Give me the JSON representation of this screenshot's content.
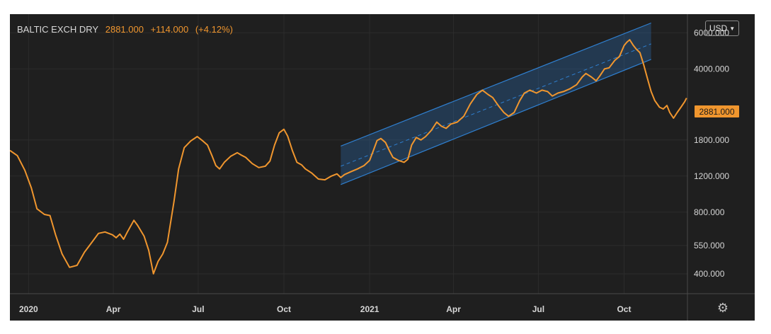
{
  "header": {
    "symbol": "BALTIC EXCH DRY",
    "last": "2881.000",
    "change": "+114.000",
    "change_pct": "(+4.12%)"
  },
  "currency": {
    "label": "USD",
    "chevron_icon": "chevron-down-icon"
  },
  "settings": {
    "icon": "gear-icon"
  },
  "last_price_label": "2881.000",
  "colors": {
    "background": "#1f1f1f",
    "line": "#f0962e",
    "channel": "#2f7fcf",
    "grid": "#2c2c2c",
    "text": "#d6d6d6"
  },
  "chart_data": {
    "type": "line",
    "y_scale": "log",
    "ylim": [
      320,
      7400
    ],
    "xlim": [
      "2019-12-12",
      "2021-12-08"
    ],
    "grid": true,
    "y_ticks": [
      {
        "value": 6000,
        "label": "6000.000"
      },
      {
        "value": 4000,
        "label": "4000.000"
      },
      {
        "value": 1800,
        "label": "1800.000"
      },
      {
        "value": 1200,
        "label": "1200.000"
      },
      {
        "value": 800,
        "label": "800.000"
      },
      {
        "value": 550,
        "label": "550.000"
      },
      {
        "value": 400,
        "label": "400.000"
      }
    ],
    "x_ticks": [
      {
        "date": "2020-01-01",
        "label": "2020"
      },
      {
        "date": "2020-04-01",
        "label": "Apr"
      },
      {
        "date": "2020-07-01",
        "label": "Jul"
      },
      {
        "date": "2020-10-01",
        "label": "Oct"
      },
      {
        "date": "2021-01-01",
        "label": "2021"
      },
      {
        "date": "2021-04-01",
        "label": "Apr"
      },
      {
        "date": "2021-07-01",
        "label": "Jul"
      },
      {
        "date": "2021-10-01",
        "label": "Oct"
      }
    ],
    "series": [
      {
        "points": [
          [
            "2019-12-12",
            1600
          ],
          [
            "2019-12-20",
            1510
          ],
          [
            "2019-12-28",
            1280
          ],
          [
            "2020-01-04",
            1050
          ],
          [
            "2020-01-10",
            830
          ],
          [
            "2020-01-18",
            780
          ],
          [
            "2020-01-24",
            770
          ],
          [
            "2020-01-30",
            620
          ],
          [
            "2020-02-06",
            500
          ],
          [
            "2020-02-14",
            430
          ],
          [
            "2020-02-22",
            440
          ],
          [
            "2020-03-01",
            510
          ],
          [
            "2020-03-09",
            570
          ],
          [
            "2020-03-16",
            630
          ],
          [
            "2020-03-23",
            640
          ],
          [
            "2020-03-31",
            620
          ],
          [
            "2020-04-04",
            600
          ],
          [
            "2020-04-08",
            625
          ],
          [
            "2020-04-12",
            590
          ],
          [
            "2020-04-16",
            640
          ],
          [
            "2020-04-23",
            730
          ],
          [
            "2020-04-27",
            690
          ],
          [
            "2020-05-04",
            610
          ],
          [
            "2020-05-09",
            520
          ],
          [
            "2020-05-14",
            400
          ],
          [
            "2020-05-19",
            460
          ],
          [
            "2020-05-24",
            500
          ],
          [
            "2020-05-29",
            570
          ],
          [
            "2020-06-05",
            900
          ],
          [
            "2020-06-10",
            1300
          ],
          [
            "2020-06-16",
            1650
          ],
          [
            "2020-06-23",
            1780
          ],
          [
            "2020-06-30",
            1870
          ],
          [
            "2020-07-06",
            1780
          ],
          [
            "2020-07-11",
            1700
          ],
          [
            "2020-07-16",
            1500
          ],
          [
            "2020-07-20",
            1350
          ],
          [
            "2020-07-24",
            1300
          ],
          [
            "2020-07-29",
            1400
          ],
          [
            "2020-08-05",
            1500
          ],
          [
            "2020-08-12",
            1560
          ],
          [
            "2020-08-16",
            1520
          ],
          [
            "2020-08-21",
            1480
          ],
          [
            "2020-08-28",
            1380
          ],
          [
            "2020-09-04",
            1320
          ],
          [
            "2020-09-11",
            1340
          ],
          [
            "2020-09-16",
            1420
          ],
          [
            "2020-09-21",
            1700
          ],
          [
            "2020-09-26",
            1950
          ],
          [
            "2020-10-01",
            2030
          ],
          [
            "2020-10-05",
            1880
          ],
          [
            "2020-10-10",
            1600
          ],
          [
            "2020-10-15",
            1400
          ],
          [
            "2020-10-20",
            1360
          ],
          [
            "2020-10-24",
            1300
          ],
          [
            "2020-10-31",
            1240
          ],
          [
            "2020-11-07",
            1160
          ],
          [
            "2020-11-14",
            1150
          ],
          [
            "2020-11-21",
            1200
          ],
          [
            "2020-11-27",
            1230
          ],
          [
            "2020-12-01",
            1180
          ],
          [
            "2020-12-05",
            1220
          ],
          [
            "2020-12-12",
            1260
          ],
          [
            "2020-12-19",
            1300
          ],
          [
            "2020-12-26",
            1350
          ],
          [
            "2021-01-01",
            1430
          ],
          [
            "2021-01-05",
            1600
          ],
          [
            "2021-01-09",
            1790
          ],
          [
            "2021-01-13",
            1830
          ],
          [
            "2021-01-18",
            1750
          ],
          [
            "2021-01-22",
            1600
          ],
          [
            "2021-01-26",
            1480
          ],
          [
            "2021-02-01",
            1430
          ],
          [
            "2021-02-07",
            1400
          ],
          [
            "2021-02-11",
            1450
          ],
          [
            "2021-02-15",
            1700
          ],
          [
            "2021-02-20",
            1850
          ],
          [
            "2021-02-25",
            1800
          ],
          [
            "2021-03-02",
            1870
          ],
          [
            "2021-03-08",
            2000
          ],
          [
            "2021-03-14",
            2200
          ],
          [
            "2021-03-19",
            2100
          ],
          [
            "2021-03-24",
            2050
          ],
          [
            "2021-03-29",
            2150
          ],
          [
            "2021-04-05",
            2200
          ],
          [
            "2021-04-12",
            2350
          ],
          [
            "2021-04-19",
            2700
          ],
          [
            "2021-04-26",
            3000
          ],
          [
            "2021-05-02",
            3150
          ],
          [
            "2021-05-08",
            3000
          ],
          [
            "2021-05-13",
            2900
          ],
          [
            "2021-05-19",
            2650
          ],
          [
            "2021-05-25",
            2450
          ],
          [
            "2021-05-30",
            2350
          ],
          [
            "2021-06-05",
            2450
          ],
          [
            "2021-06-11",
            2800
          ],
          [
            "2021-06-16",
            3050
          ],
          [
            "2021-06-22",
            3150
          ],
          [
            "2021-06-29",
            3050
          ],
          [
            "2021-07-05",
            3150
          ],
          [
            "2021-07-11",
            3100
          ],
          [
            "2021-07-16",
            2950
          ],
          [
            "2021-07-22",
            3050
          ],
          [
            "2021-07-28",
            3100
          ],
          [
            "2021-08-04",
            3200
          ],
          [
            "2021-08-11",
            3350
          ],
          [
            "2021-08-17",
            3650
          ],
          [
            "2021-08-21",
            3800
          ],
          [
            "2021-08-27",
            3650
          ],
          [
            "2021-09-01",
            3500
          ],
          [
            "2021-09-05",
            3700
          ],
          [
            "2021-09-10",
            4000
          ],
          [
            "2021-09-15",
            4050
          ],
          [
            "2021-09-21",
            4400
          ],
          [
            "2021-09-26",
            4600
          ],
          [
            "2021-10-01",
            5200
          ],
          [
            "2021-10-04",
            5400
          ],
          [
            "2021-10-07",
            5550
          ],
          [
            "2021-10-11",
            5200
          ],
          [
            "2021-10-14",
            5000
          ],
          [
            "2021-10-18",
            4800
          ],
          [
            "2021-10-22",
            4200
          ],
          [
            "2021-10-26",
            3600
          ],
          [
            "2021-10-30",
            3100
          ],
          [
            "2021-11-03",
            2800
          ],
          [
            "2021-11-08",
            2600
          ],
          [
            "2021-11-12",
            2550
          ],
          [
            "2021-11-16",
            2650
          ],
          [
            "2021-11-19",
            2450
          ],
          [
            "2021-11-23",
            2300
          ],
          [
            "2021-11-27",
            2450
          ],
          [
            "2021-12-01",
            2600
          ],
          [
            "2021-12-05",
            2767
          ],
          [
            "2021-12-07",
            2881
          ]
        ]
      }
    ],
    "trend_channel": {
      "start": "2020-12-01",
      "end": "2021-10-30",
      "upper": [
        1680,
        6700
      ],
      "mid": [
        1340,
        5300
      ],
      "lower": [
        1090,
        4450
      ]
    }
  }
}
